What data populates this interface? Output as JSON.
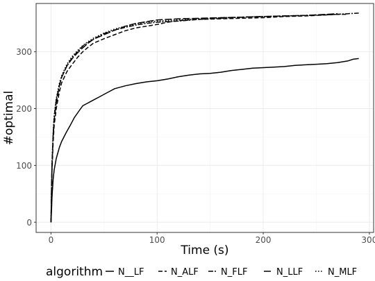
{
  "chart_data": {
    "type": "line",
    "title": "",
    "xlabel": "Time (s)",
    "ylabel": "#optimal",
    "xlim": [
      -14,
      304
    ],
    "ylim": [
      -18,
      385
    ],
    "xticks": [
      0,
      100,
      200,
      300
    ],
    "yticks": [
      0,
      100,
      200,
      300
    ],
    "xtick_labels": [
      "0",
      "100",
      "200",
      "300"
    ],
    "ytick_labels": [
      "0",
      "100",
      "200",
      "300"
    ],
    "grid": true,
    "legend_title": "algorithm",
    "legend_position": "bottom",
    "series": [
      {
        "name": "N__LF",
        "dash": "solid",
        "x": [
          0,
          0.5,
          1,
          2,
          3,
          5,
          8,
          10,
          13,
          15,
          18,
          20,
          22,
          25,
          28,
          30,
          35,
          40,
          45,
          50,
          55,
          60,
          70,
          80,
          90,
          100,
          110,
          120,
          130,
          140,
          150,
          160,
          170,
          180,
          190,
          200,
          210,
          220,
          230,
          240,
          250,
          260,
          270,
          280,
          285,
          290
        ],
        "y": [
          0,
          20,
          45,
          75,
          92,
          112,
          132,
          142,
          153,
          160,
          170,
          177,
          184,
          192,
          200,
          205,
          210,
          215,
          220,
          225,
          230,
          235,
          240,
          244,
          247,
          249,
          252,
          256,
          259,
          261,
          262,
          264,
          267,
          269,
          271,
          272,
          273,
          274,
          276,
          277,
          278,
          279,
          281,
          284,
          287,
          288
        ]
      },
      {
        "name": "N_ALF",
        "dash": "dashed",
        "x": [
          0,
          0.5,
          1,
          2,
          3,
          5,
          8,
          10,
          15,
          20,
          25,
          30,
          35,
          40,
          50,
          60,
          70,
          80,
          90,
          100,
          110,
          120,
          140,
          160,
          180,
          200,
          220,
          240,
          260,
          270,
          280
        ],
        "y": [
          0,
          50,
          90,
          140,
          170,
          200,
          230,
          245,
          265,
          278,
          290,
          300,
          308,
          315,
          323,
          330,
          337,
          342,
          345,
          348,
          352,
          355,
          357,
          358,
          359,
          360,
          362,
          363,
          365,
          366,
          366
        ]
      },
      {
        "name": "N_FLF",
        "dash": "twodash",
        "x": [
          0,
          0.5,
          1,
          2,
          3,
          5,
          8,
          10,
          15,
          20,
          25,
          30,
          35,
          40,
          50,
          60,
          70,
          80,
          90,
          100,
          120,
          140,
          160,
          180,
          200,
          220,
          240,
          260,
          270,
          280,
          290
        ],
        "y": [
          0,
          55,
          100,
          155,
          185,
          215,
          242,
          255,
          275,
          290,
          300,
          310,
          316,
          322,
          332,
          338,
          343,
          347,
          350,
          352,
          354,
          357,
          359,
          361,
          362,
          363,
          364,
          365,
          366,
          367,
          368
        ]
      },
      {
        "name": "N_LLF",
        "dash": "longdash",
        "x": [
          0,
          0.5,
          1,
          2,
          3,
          5,
          8,
          10,
          15,
          20,
          25,
          30,
          35,
          40,
          50,
          60,
          70,
          80,
          90,
          100,
          110,
          120,
          140,
          160,
          180,
          200,
          220,
          240,
          260,
          270
        ],
        "y": [
          0,
          55,
          100,
          150,
          180,
          210,
          240,
          255,
          275,
          288,
          298,
          307,
          315,
          322,
          330,
          338,
          345,
          350,
          353,
          356,
          357,
          358,
          359,
          360,
          361,
          362,
          363,
          364,
          366,
          367
        ]
      },
      {
        "name": "N_MLF",
        "dash": "dotted",
        "x": [
          0,
          0.5,
          1,
          2,
          3,
          5,
          8,
          10,
          15,
          20,
          25,
          30,
          35,
          40,
          50,
          60,
          70,
          80,
          90,
          100,
          120,
          140,
          160,
          180,
          200,
          220,
          240,
          260,
          270
        ],
        "y": [
          0,
          58,
          105,
          158,
          188,
          218,
          245,
          258,
          278,
          292,
          302,
          311,
          318,
          324,
          333,
          340,
          345,
          349,
          352,
          354,
          356,
          358,
          360,
          361,
          362,
          363,
          364,
          365,
          366
        ]
      }
    ]
  }
}
